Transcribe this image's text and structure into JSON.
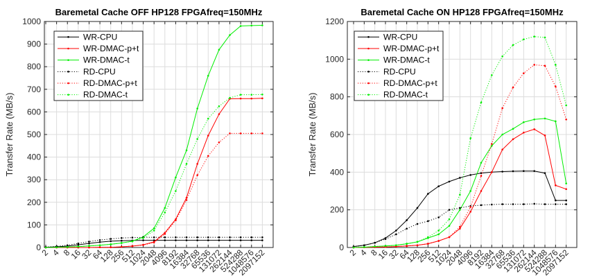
{
  "chart_data": [
    {
      "type": "line",
      "title": "Baremetal Cache OFF  HP128 FPGAfreq=150MHz",
      "xlabel": "",
      "ylabel": "Transfer Rate (MB/s)",
      "x_scale": "log2",
      "x": [
        "2",
        "4",
        "8",
        "16",
        "32",
        "64",
        "128",
        "256",
        "512",
        "1024",
        "2048",
        "4096",
        "8192",
        "16384",
        "32768",
        "65536",
        "131072",
        "262144",
        "524288",
        "1048576",
        "2097152"
      ],
      "ylim": [
        0,
        1000
      ],
      "yticks": [
        0,
        100,
        200,
        300,
        400,
        500,
        600,
        700,
        800,
        900,
        1000
      ],
      "grid": true,
      "legend": "top-left",
      "series": [
        {
          "name": "WR-CPU",
          "color": "#000000",
          "style": "solid",
          "values": [
            1,
            3,
            6,
            12,
            18,
            24,
            28,
            30,
            31,
            32,
            32,
            32,
            32,
            32,
            32,
            32,
            32,
            32,
            32,
            32,
            32
          ]
        },
        {
          "name": "WR-DMAC-p+t",
          "color": "#ff0000",
          "style": "solid",
          "values": [
            0,
            0,
            0,
            0,
            0,
            1,
            1,
            3,
            6,
            12,
            25,
            65,
            125,
            220,
            370,
            495,
            590,
            658,
            659,
            659,
            660
          ]
        },
        {
          "name": "WR-DMAC-t",
          "color": "#00ee00",
          "style": "solid",
          "values": [
            0,
            1,
            2,
            4,
            7,
            10,
            14,
            20,
            28,
            47,
            85,
            175,
            310,
            430,
            615,
            760,
            875,
            940,
            980,
            982,
            983
          ]
        },
        {
          "name": "RD-CPU",
          "color": "#000000",
          "style": "dotted",
          "values": [
            2,
            5,
            10,
            18,
            26,
            33,
            38,
            42,
            44,
            45,
            45,
            45,
            45,
            45,
            45,
            45,
            45,
            45,
            45,
            45,
            45
          ]
        },
        {
          "name": "RD-DMAC-p+t",
          "color": "#ff0000",
          "style": "dotted",
          "values": [
            0,
            0,
            0,
            0,
            0,
            1,
            1,
            3,
            6,
            11,
            22,
            60,
            120,
            210,
            320,
            405,
            465,
            505,
            505,
            505,
            505
          ]
        },
        {
          "name": "RD-DMAC-t",
          "color": "#00ee00",
          "style": "dotted",
          "values": [
            0,
            1,
            2,
            4,
            7,
            10,
            14,
            20,
            27,
            42,
            75,
            155,
            250,
            370,
            480,
            570,
            625,
            662,
            676,
            676,
            677
          ]
        }
      ]
    },
    {
      "type": "line",
      "title": "Baremetal Cache ON HP128 FPGAfreq=150MHz",
      "xlabel": "",
      "ylabel": "Transfer Rate (MB/s)",
      "x_scale": "log2",
      "x": [
        "2",
        "4",
        "8",
        "16",
        "32",
        "64",
        "128",
        "256",
        "512",
        "1024",
        "2048",
        "4096",
        "8192",
        "16384",
        "32768",
        "65536",
        "131072",
        "262144",
        "524288",
        "1048576",
        "2097152"
      ],
      "ylim": [
        0,
        1200
      ],
      "yticks": [
        0,
        200,
        400,
        600,
        800,
        1000,
        1200
      ],
      "grid": true,
      "legend": "top-left",
      "series": [
        {
          "name": "WR-CPU",
          "color": "#000000",
          "style": "solid",
          "values": [
            5,
            12,
            25,
            50,
            90,
            145,
            210,
            285,
            325,
            350,
            370,
            385,
            395,
            400,
            403,
            405,
            406,
            406,
            395,
            250,
            250
          ]
        },
        {
          "name": "WR-DMAC-p+t",
          "color": "#ff0000",
          "style": "solid",
          "values": [
            0,
            1,
            2,
            3,
            5,
            8,
            12,
            20,
            35,
            55,
            100,
            190,
            300,
            400,
            520,
            575,
            610,
            628,
            595,
            330,
            310
          ]
        },
        {
          "name": "WR-DMAC-t",
          "color": "#00ee00",
          "style": "solid",
          "values": [
            0,
            2,
            5,
            8,
            12,
            20,
            30,
            50,
            70,
            115,
            200,
            300,
            450,
            540,
            600,
            630,
            665,
            680,
            685,
            670,
            340
          ]
        },
        {
          "name": "RD-CPU",
          "color": "#000000",
          "style": "dotted",
          "values": [
            5,
            12,
            25,
            45,
            70,
            100,
            125,
            140,
            160,
            200,
            210,
            220,
            225,
            228,
            230,
            230,
            230,
            232,
            230,
            230,
            230
          ]
        },
        {
          "name": "RD-DMAC-p+t",
          "color": "#ff0000",
          "style": "dotted",
          "values": [
            0,
            1,
            2,
            3,
            5,
            8,
            12,
            20,
            35,
            55,
            110,
            215,
            380,
            550,
            740,
            850,
            925,
            970,
            965,
            855,
            680
          ]
        },
        {
          "name": "RD-DMAC-t",
          "color": "#00ee00",
          "style": "dotted",
          "values": [
            0,
            2,
            5,
            8,
            12,
            20,
            30,
            55,
            90,
            150,
            280,
            580,
            770,
            915,
            1015,
            1075,
            1105,
            1120,
            1115,
            970,
            755
          ]
        }
      ]
    }
  ]
}
